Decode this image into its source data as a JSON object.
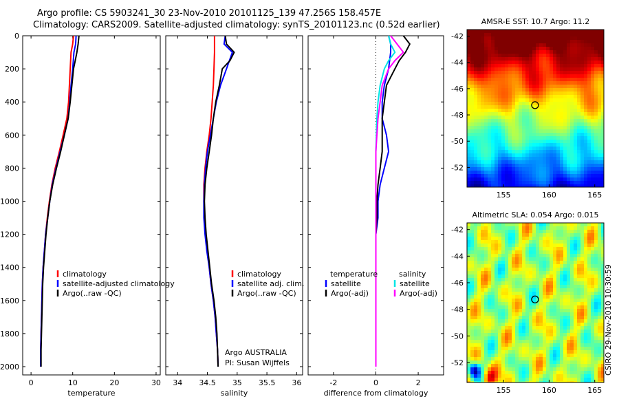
{
  "header": {
    "title_line1": "Argo profile: CS 5903241_30 23-Nov-2010 20101125_139 47.256S 158.457E",
    "title_line2": "Climatology: CARS2009. Satellite-adjusted climatology: synTS_20101123.nc (0.52d earlier)"
  },
  "side_label": "CSIRO 29-Nov-2010 10:30:59",
  "colors": {
    "climatology": "#ff0000",
    "satellite": "#0000ff",
    "argo": "#000000",
    "salinity_sat": "#00e5e5",
    "salinity_argo": "#ff00ff"
  },
  "chart_data": [
    {
      "id": "temperature",
      "type": "line",
      "xlabel": "temperature",
      "ylabel": "",
      "xlim": [
        -2,
        31
      ],
      "ylim": [
        0,
        2050
      ],
      "y_reversed": true,
      "xticks": [
        0,
        10,
        20,
        30
      ],
      "yticks": [
        0,
        200,
        400,
        600,
        800,
        1000,
        1200,
        1400,
        1600,
        1800,
        2000
      ],
      "legend": [
        "climatology",
        "satellite-adjusted climatology",
        "Argo(..raw -QC)"
      ],
      "legend_placement": "lower-right",
      "series": [
        {
          "name": "climatology",
          "color": "#ff0000",
          "points": [
            [
              10.2,
              0
            ],
            [
              10.0,
              50
            ],
            [
              9.6,
              100
            ],
            [
              9.4,
              200
            ],
            [
              9.2,
              300
            ],
            [
              9.0,
              400
            ],
            [
              8.6,
              500
            ],
            [
              7.7,
              600
            ],
            [
              6.8,
              700
            ],
            [
              5.8,
              800
            ],
            [
              5.0,
              900
            ],
            [
              4.4,
              1000
            ],
            [
              3.9,
              1100
            ],
            [
              3.5,
              1200
            ],
            [
              3.2,
              1300
            ],
            [
              2.9,
              1400
            ],
            [
              2.7,
              1500
            ],
            [
              2.6,
              1600
            ],
            [
              2.5,
              1700
            ],
            [
              2.4,
              1800
            ],
            [
              2.3,
              1900
            ],
            [
              2.3,
              2000
            ]
          ]
        },
        {
          "name": "satellite-adjusted climatology",
          "color": "#0000ff",
          "points": [
            [
              10.8,
              0
            ],
            [
              10.7,
              50
            ],
            [
              10.3,
              100
            ],
            [
              10.0,
              200
            ],
            [
              9.6,
              300
            ],
            [
              9.3,
              400
            ],
            [
              8.9,
              500
            ],
            [
              8.0,
              600
            ],
            [
              7.0,
              700
            ],
            [
              6.0,
              800
            ],
            [
              5.1,
              900
            ],
            [
              4.5,
              1000
            ],
            [
              4.0,
              1100
            ],
            [
              3.5,
              1200
            ],
            [
              3.2,
              1300
            ],
            [
              2.9,
              1400
            ],
            [
              2.7,
              1500
            ],
            [
              2.6,
              1600
            ],
            [
              2.5,
              1700
            ],
            [
              2.4,
              1800
            ],
            [
              2.3,
              1900
            ],
            [
              2.3,
              2000
            ]
          ]
        },
        {
          "name": "Argo(..raw -QC)",
          "color": "#000000",
          "points": [
            [
              11.5,
              0
            ],
            [
              11.3,
              50
            ],
            [
              11.0,
              100
            ],
            [
              10.6,
              150
            ],
            [
              10.2,
              200
            ],
            [
              9.8,
              300
            ],
            [
              9.4,
              400
            ],
            [
              8.9,
              500
            ],
            [
              8.0,
              600
            ],
            [
              7.1,
              700
            ],
            [
              6.1,
              800
            ],
            [
              5.2,
              900
            ],
            [
              4.5,
              1000
            ],
            [
              4.0,
              1100
            ],
            [
              3.6,
              1200
            ],
            [
              3.3,
              1300
            ],
            [
              3.0,
              1400
            ],
            [
              2.8,
              1500
            ],
            [
              2.7,
              1600
            ],
            [
              2.6,
              1700
            ],
            [
              2.5,
              1800
            ],
            [
              2.4,
              1900
            ],
            [
              2.4,
              2000
            ]
          ]
        }
      ]
    },
    {
      "id": "salinity",
      "type": "line",
      "xlabel": "salinity",
      "xlim": [
        33.8,
        36.1
      ],
      "ylim": [
        0,
        2050
      ],
      "y_reversed": true,
      "xticks": [
        34,
        34.5,
        35,
        35.5,
        36
      ],
      "yticks": [
        0,
        200,
        400,
        600,
        800,
        1000,
        1200,
        1400,
        1600,
        1800,
        2000
      ],
      "legend": [
        "climatology",
        "satellite adj. clim.",
        "Argo(..raw -QC)"
      ],
      "legend_placement": "lower-right",
      "annotation_line1": "Argo AUSTRALIA",
      "annotation_line2": "PI: Susan Wijffels",
      "series": [
        {
          "name": "climatology",
          "color": "#ff0000",
          "points": [
            [
              34.62,
              0
            ],
            [
              34.62,
              100
            ],
            [
              34.61,
              200
            ],
            [
              34.6,
              300
            ],
            [
              34.58,
              400
            ],
            [
              34.56,
              500
            ],
            [
              34.53,
              600
            ],
            [
              34.49,
              700
            ],
            [
              34.46,
              800
            ],
            [
              34.44,
              900
            ],
            [
              34.44,
              1000
            ],
            [
              34.45,
              1100
            ],
            [
              34.47,
              1200
            ],
            [
              34.5,
              1300
            ],
            [
              34.53,
              1400
            ],
            [
              34.56,
              1500
            ],
            [
              34.6,
              1600
            ],
            [
              34.63,
              1700
            ],
            [
              34.65,
              1800
            ],
            [
              34.67,
              1900
            ],
            [
              34.68,
              2000
            ]
          ]
        },
        {
          "name": "satellite adj. clim.",
          "color": "#0000ff",
          "points": [
            [
              34.8,
              0
            ],
            [
              34.78,
              50
            ],
            [
              34.92,
              100
            ],
            [
              34.82,
              200
            ],
            [
              34.72,
              300
            ],
            [
              34.65,
              400
            ],
            [
              34.6,
              500
            ],
            [
              34.55,
              600
            ],
            [
              34.5,
              700
            ],
            [
              34.47,
              800
            ],
            [
              34.45,
              900
            ],
            [
              34.44,
              1000
            ],
            [
              34.44,
              1100
            ],
            [
              34.46,
              1200
            ],
            [
              34.49,
              1300
            ],
            [
              34.53,
              1400
            ],
            [
              34.56,
              1500
            ],
            [
              34.6,
              1600
            ],
            [
              34.63,
              1700
            ],
            [
              34.65,
              1800
            ],
            [
              34.67,
              1900
            ],
            [
              34.68,
              2000
            ]
          ]
        },
        {
          "name": "Argo(..raw -QC)",
          "color": "#000000",
          "points": [
            [
              34.8,
              0
            ],
            [
              34.82,
              50
            ],
            [
              34.95,
              100
            ],
            [
              34.88,
              150
            ],
            [
              34.75,
              200
            ],
            [
              34.7,
              300
            ],
            [
              34.64,
              400
            ],
            [
              34.6,
              500
            ],
            [
              34.57,
              600
            ],
            [
              34.53,
              700
            ],
            [
              34.49,
              800
            ],
            [
              34.46,
              900
            ],
            [
              34.45,
              1000
            ],
            [
              34.46,
              1100
            ],
            [
              34.48,
              1200
            ],
            [
              34.51,
              1300
            ],
            [
              34.54,
              1400
            ],
            [
              34.57,
              1500
            ],
            [
              34.61,
              1600
            ],
            [
              34.64,
              1700
            ],
            [
              34.66,
              1800
            ],
            [
              34.67,
              1900
            ],
            [
              34.68,
              2000
            ]
          ]
        }
      ]
    },
    {
      "id": "difference",
      "type": "line",
      "xlabel": "difference from climatology",
      "xlim": [
        -3.2,
        3.2
      ],
      "ylim": [
        0,
        2050
      ],
      "y_reversed": true,
      "xticks": [
        -2,
        0,
        2
      ],
      "yticks": [
        0,
        200,
        400,
        600,
        800,
        1000,
        1200,
        1400,
        1600,
        1800,
        2000
      ],
      "zero_line": "dotted",
      "legend_temperature_title": "temperature",
      "legend_temperature": [
        "satellite",
        "Argo(-adj)"
      ],
      "legend_salinity_title": "salinity",
      "legend_salinity": [
        "satellite",
        "Argo(-adj)"
      ],
      "legend_placement": "lower-center",
      "series": [
        {
          "name": "temperature satellite",
          "color": "#0000ff",
          "points": [
            [
              0.6,
              0
            ],
            [
              0.7,
              50
            ],
            [
              0.7,
              100
            ],
            [
              0.6,
              200
            ],
            [
              0.4,
              300
            ],
            [
              0.3,
              400
            ],
            [
              0.3,
              500
            ],
            [
              0.5,
              600
            ],
            [
              0.6,
              700
            ],
            [
              0.4,
              800
            ],
            [
              0.2,
              900
            ],
            [
              0.1,
              1000
            ],
            [
              0.1,
              1100
            ],
            [
              0.0,
              1200
            ],
            [
              0.0,
              1400
            ],
            [
              0.0,
              1600
            ],
            [
              0.0,
              1800
            ],
            [
              0.0,
              2000
            ]
          ]
        },
        {
          "name": "temperature Argo(-adj)",
          "color": "#000000",
          "points": [
            [
              1.3,
              0
            ],
            [
              1.6,
              50
            ],
            [
              1.4,
              100
            ],
            [
              1.1,
              150
            ],
            [
              0.9,
              200
            ],
            [
              0.5,
              300
            ],
            [
              0.4,
              400
            ],
            [
              0.3,
              500
            ],
            [
              0.3,
              600
            ],
            [
              0.3,
              700
            ],
            [
              0.2,
              800
            ],
            [
              0.1,
              900
            ],
            [
              0.05,
              1000
            ],
            [
              0.05,
              1100
            ],
            [
              0.0,
              1200
            ],
            [
              0.0,
              1400
            ],
            [
              0.0,
              1600
            ],
            [
              0.0,
              1800
            ],
            [
              0.0,
              2000
            ]
          ]
        },
        {
          "name": "salinity satellite",
          "color": "#00e5e5",
          "points": [
            [
              0.6,
              0
            ],
            [
              0.7,
              50
            ],
            [
              0.9,
              100
            ],
            [
              0.6,
              150
            ],
            [
              0.4,
              200
            ],
            [
              0.2,
              300
            ],
            [
              0.1,
              400
            ],
            [
              0.05,
              500
            ],
            [
              0.0,
              700
            ],
            [
              0.0,
              900
            ],
            [
              0.0,
              1100
            ],
            [
              0.0,
              1300
            ],
            [
              0.0,
              1500
            ],
            [
              0.0,
              1700
            ],
            [
              0.0,
              1900
            ],
            [
              0.0,
              2000
            ]
          ]
        },
        {
          "name": "salinity Argo(-adj)",
          "color": "#ff00ff",
          "points": [
            [
              0.7,
              0
            ],
            [
              1.0,
              50
            ],
            [
              1.3,
              100
            ],
            [
              0.9,
              150
            ],
            [
              0.6,
              200
            ],
            [
              0.3,
              300
            ],
            [
              0.2,
              400
            ],
            [
              0.1,
              500
            ],
            [
              0.05,
              600
            ],
            [
              0.0,
              700
            ],
            [
              0.0,
              900
            ],
            [
              0.0,
              1100
            ],
            [
              0.0,
              1300
            ],
            [
              0.0,
              1500
            ],
            [
              0.0,
              1700
            ],
            [
              0.0,
              1900
            ],
            [
              0.0,
              2000
            ]
          ]
        }
      ]
    },
    {
      "id": "sst_map",
      "type": "heatmap",
      "title": "AMSR-E SST: 10.7 Argo: 11.2",
      "xlim": [
        151,
        166
      ],
      "ylim": [
        -53.5,
        -41.5
      ],
      "xticks": [
        155,
        160,
        165
      ],
      "yticks": [
        -42,
        -44,
        -46,
        -48,
        -50,
        -52
      ],
      "marker": {
        "lon": 158.457,
        "lat": -47.256
      }
    },
    {
      "id": "sla_map",
      "type": "heatmap",
      "title": "Altimetric SLA: 0.054 Argo: 0.015",
      "xlim": [
        151,
        166
      ],
      "ylim": [
        -53.5,
        -41.5
      ],
      "xticks": [
        155,
        160,
        165
      ],
      "yticks": [
        -42,
        -44,
        -46,
        -48,
        -50,
        -52
      ],
      "marker": {
        "lon": 158.457,
        "lat": -47.256
      }
    }
  ]
}
